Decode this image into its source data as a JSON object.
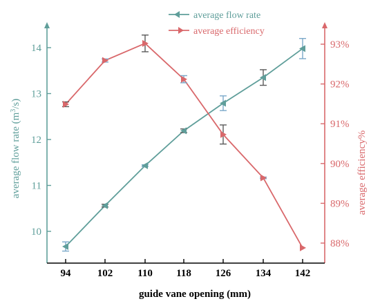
{
  "chart_data": {
    "type": "line",
    "x": [
      94,
      102,
      110,
      118,
      126,
      134,
      142
    ],
    "xlabel": "guide vane opening (mm)",
    "series": [
      {
        "name": "average flow rate",
        "axis": "left",
        "color": "#5f9e9a",
        "marker": "triangle-left",
        "values": [
          9.67,
          10.56,
          11.43,
          12.19,
          12.79,
          13.35,
          13.98
        ],
        "errors": [
          0.1,
          0.03,
          0.02,
          0.04,
          0.16,
          0.17,
          0.22
        ]
      },
      {
        "name": "average efficiency",
        "axis": "right",
        "color": "#d9686b",
        "marker": "triangle-right",
        "values": [
          91.49,
          92.59,
          93.02,
          92.12,
          90.73,
          89.64,
          87.88
        ],
        "errors": [
          0.06,
          0.04,
          0.21,
          0.09,
          0.24,
          0.02,
          0.0
        ]
      }
    ],
    "y_left": {
      "label_main": "average flow rate (m",
      "label_sup": "3",
      "label_end": "/s)",
      "ylim": [
        9.4,
        14.6
      ],
      "ticks": [
        "10",
        "11",
        "12",
        "13",
        "14"
      ],
      "tick_values": [
        10,
        11,
        12,
        13,
        14
      ],
      "color": "#5f9e9a"
    },
    "y_right": {
      "label": "average efficiency%",
      "ylim": [
        87.6,
        93.4
      ],
      "ticks": [
        "88%",
        "89%",
        "90%",
        "91%",
        "92%",
        "93%"
      ],
      "tick_values": [
        88,
        89,
        90,
        91,
        92,
        93
      ],
      "color": "#d9686b"
    },
    "x_ticks": [
      "94",
      "102",
      "110",
      "118",
      "126",
      "134",
      "142"
    ],
    "error_bar_colors": [
      "#7aa8c9",
      "#5a5a5a"
    ],
    "legend_position": "top-center",
    "grid": false
  }
}
